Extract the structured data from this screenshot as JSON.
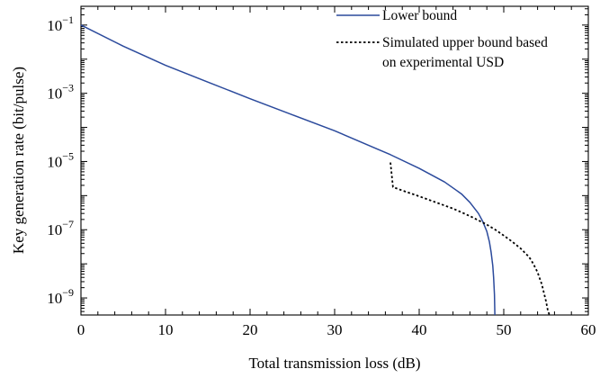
{
  "chart_data": {
    "type": "line",
    "xlabel": "Total transmission loss (dB)",
    "ylabel": "Key generation rate (bit/pulse)",
    "xlim": [
      0,
      60
    ],
    "ylim": [
      -9.5,
      -0.45
    ],
    "y_scale": "log10",
    "x_ticks": [
      0,
      10,
      20,
      30,
      40,
      50,
      60
    ],
    "x_tick_labels": [
      "0",
      "10",
      "20",
      "30",
      "40",
      "50",
      "60"
    ],
    "y_ticks": [
      -9,
      -7,
      -5,
      -3,
      -1
    ],
    "y_tick_labels": [
      {
        "base": "10",
        "exp": "−9"
      },
      {
        "base": "10",
        "exp": "−7"
      },
      {
        "base": "10",
        "exp": "−5"
      },
      {
        "base": "10",
        "exp": "−3"
      },
      {
        "base": "10",
        "exp": "−1"
      }
    ],
    "grid": false,
    "legend_position": "top-right",
    "series": [
      {
        "name": "Lower bound",
        "color": "#2b4a9c",
        "style": "solid",
        "x": [
          0,
          5,
          10,
          15,
          20,
          25,
          30,
          35,
          36.6,
          40,
          43,
          45,
          46,
          47,
          47.5,
          48,
          48.3,
          48.5,
          48.7,
          48.8,
          48.9,
          48.95
        ],
        "log10_y": [
          -1.0,
          -1.62,
          -2.18,
          -2.67,
          -3.16,
          -3.63,
          -4.1,
          -4.63,
          -4.8,
          -5.2,
          -5.6,
          -5.95,
          -6.2,
          -6.52,
          -6.75,
          -7.05,
          -7.35,
          -7.65,
          -8.05,
          -8.4,
          -8.9,
          -9.5
        ]
      },
      {
        "name": "Simulated upper bound based on experimental USD",
        "color": "#000000",
        "style": "dotted",
        "x": [
          36.6,
          36.9,
          38,
          40,
          42,
          44,
          46,
          48,
          49,
          50,
          51,
          52,
          53,
          53.5,
          54,
          54.5,
          55,
          55.2,
          55.4
        ],
        "log10_y": [
          -5.03,
          -5.75,
          -5.85,
          -6.02,
          -6.2,
          -6.38,
          -6.6,
          -6.85,
          -7.0,
          -7.17,
          -7.35,
          -7.55,
          -7.8,
          -8.0,
          -8.25,
          -8.6,
          -9.1,
          -9.35,
          -9.5
        ]
      }
    ],
    "legend": [
      {
        "lines": [
          "Lower bound"
        ]
      },
      {
        "lines": [
          "Simulated upper bound based",
          "on experimental USD"
        ]
      }
    ]
  }
}
